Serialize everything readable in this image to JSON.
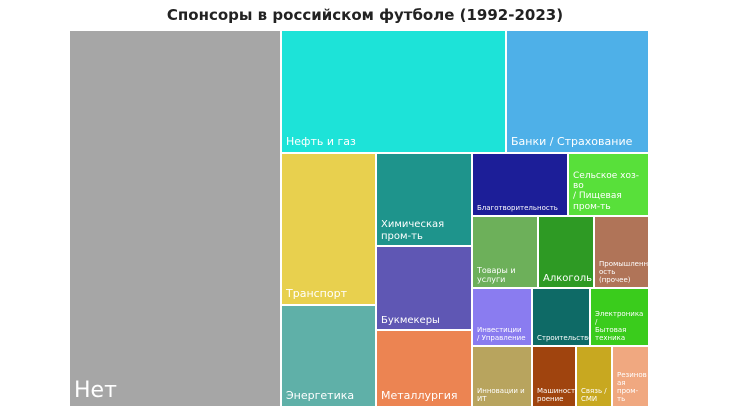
{
  "chart_data": {
    "type": "treemap",
    "title": "Спонсоры в российском футболе (1992-2023)",
    "items": [
      {
        "label": "Нет",
        "color": "#a6a6a6"
      },
      {
        "label": "Нефть и газ",
        "color": "#1de3d8"
      },
      {
        "label": "Банки / Страхование",
        "color": "#4eb0e8"
      },
      {
        "label": "Транспорт",
        "color": "#e8d04e"
      },
      {
        "label": "Химическая пром-ть",
        "color": "#1e948c"
      },
      {
        "label": "Благотворительность",
        "color": "#1c1e98"
      },
      {
        "label": "Сельское хоз-во / Пищевая пром-ть",
        "color": "#58e03a"
      },
      {
        "label": "Товары и услуги",
        "color": "#6db05a"
      },
      {
        "label": "Алкоголь",
        "color": "#2e9a24"
      },
      {
        "label": "Промышленность (прочее)",
        "color": "#b07458"
      },
      {
        "label": "Букмекеры",
        "color": "#5f57b4"
      },
      {
        "label": "Инвестиции / Управление",
        "color": "#8a7cf0"
      },
      {
        "label": "Строительство",
        "color": "#0e6a66"
      },
      {
        "label": "Электроника / Бытовая техника",
        "color": "#3acc1c"
      },
      {
        "label": "Энергетика",
        "color": "#5fb0a8"
      },
      {
        "label": "Металлургия",
        "color": "#ec8452"
      },
      {
        "label": "Инновации и ИТ",
        "color": "#b8a45e"
      },
      {
        "label": "Машиностроение",
        "color": "#a0440e"
      },
      {
        "label": "Связь / СМИ",
        "color": "#c8a820"
      },
      {
        "label": "Резиновая пром-ть",
        "color": "#f0a880"
      }
    ]
  }
}
